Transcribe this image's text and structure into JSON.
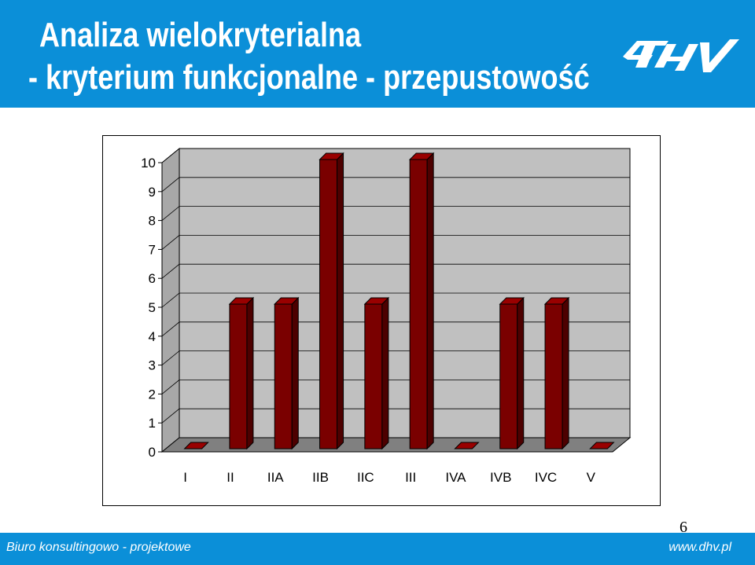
{
  "header": {
    "title_line1": "Analiza wielokryterialna",
    "title_line2": "- kryterium funkcjonalne - przepustowość",
    "logo_text": "DHV"
  },
  "colors": {
    "header_bg": "#0b8fd8",
    "bar_front": "#7a0000",
    "bar_top": "#990000",
    "bar_side": "#4d0000",
    "plot_back": "#c0c0c0",
    "plot_floor": "#808080"
  },
  "chart_data": {
    "type": "bar",
    "title": "",
    "xlabel": "",
    "ylabel": "",
    "categories": [
      "I",
      "II",
      "IIA",
      "IIB",
      "IIC",
      "III",
      "IVA",
      "IVB",
      "IVC",
      "V"
    ],
    "values": [
      0,
      5,
      5,
      10,
      5,
      10,
      0,
      5,
      5,
      0
    ],
    "ylim": [
      0,
      10
    ],
    "yticks": [
      0,
      1,
      2,
      3,
      4,
      5,
      6,
      7,
      8,
      9,
      10
    ],
    "grid": true,
    "legend": "none",
    "style": "3d"
  },
  "page_number": "6",
  "footer": {
    "left_text": "Biuro konsultingowo - projektowe",
    "right_text": "www.dhv.pl"
  }
}
